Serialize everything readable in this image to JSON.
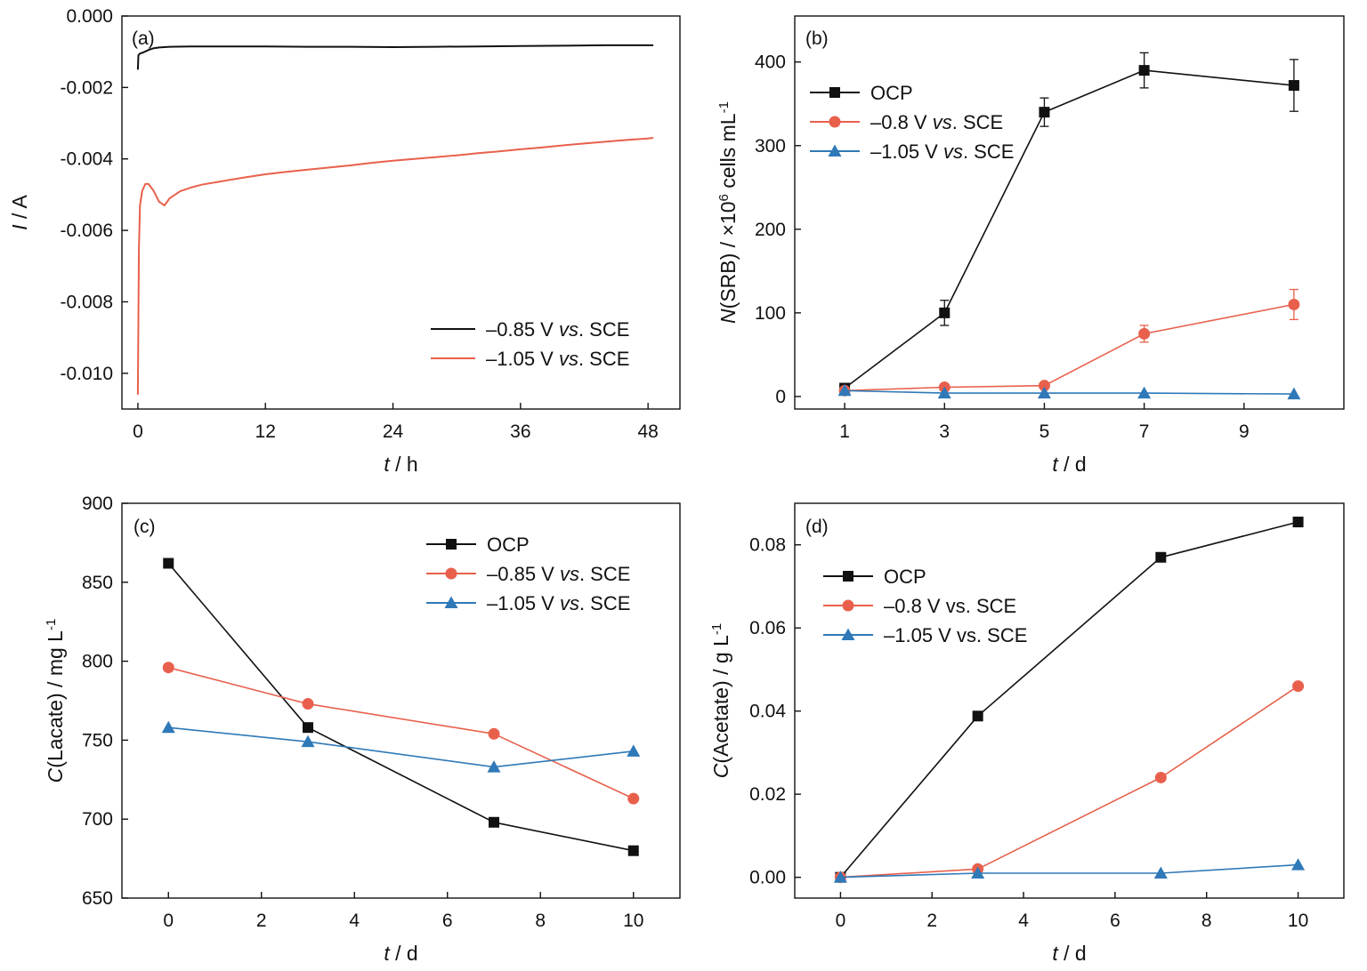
{
  "colors": {
    "black": "#111111",
    "red": "#e8604c",
    "blue": "#2f79b8"
  },
  "chart_data": [
    {
      "panel": "(a)",
      "type": "line",
      "xlabel": "t / h",
      "ylabel": "I / A",
      "xlim": [
        -1.5,
        51
      ],
      "ylim": [
        -0.011,
        0.0
      ],
      "xticks": [
        0,
        12,
        24,
        36,
        48
      ],
      "yticks": [
        -0.01,
        -0.008,
        -0.006,
        -0.004,
        -0.002,
        0.0
      ],
      "ytick_labels": [
        "-0.010",
        "-0.008",
        "-0.006",
        "-0.004",
        "-0.002",
        "0.000"
      ],
      "legend_position": "bottom-right",
      "series": [
        {
          "name": "–0.85 V vs. SCE",
          "color": "black",
          "marker": "none",
          "x": [
            0,
            0.05,
            0.2,
            0.5,
            1,
            1.5,
            2,
            3,
            5,
            8,
            12,
            16,
            20,
            24,
            28,
            32,
            36,
            40,
            44,
            48,
            48.5
          ],
          "y": [
            -0.0015,
            -0.0011,
            -0.00105,
            -0.00102,
            -0.00095,
            -0.0009,
            -0.00088,
            -0.00086,
            -0.00085,
            -0.00085,
            -0.00085,
            -0.00086,
            -0.00086,
            -0.00087,
            -0.00086,
            -0.00085,
            -0.00084,
            -0.00083,
            -0.00082,
            -0.00082,
            -0.00082
          ]
        },
        {
          "name": "–1.05 V vs. SCE",
          "color": "red",
          "marker": "none",
          "x": [
            0,
            0.05,
            0.1,
            0.2,
            0.4,
            0.7,
            1,
            1.5,
            2,
            2.5,
            3,
            4,
            5,
            6,
            8,
            10,
            12,
            14,
            16,
            18,
            20,
            22,
            24,
            26,
            28,
            30,
            32,
            34,
            36,
            38,
            40,
            42,
            44,
            46,
            48,
            48.5
          ],
          "y": [
            -0.0106,
            -0.0085,
            -0.0065,
            -0.0053,
            -0.0049,
            -0.0047,
            -0.0047,
            -0.0049,
            -0.0052,
            -0.0053,
            -0.0051,
            -0.0049,
            -0.0048,
            -0.00472,
            -0.00462,
            -0.00452,
            -0.00443,
            -0.00436,
            -0.0043,
            -0.00424,
            -0.00418,
            -0.00411,
            -0.00405,
            -0.004,
            -0.00395,
            -0.0039,
            -0.00384,
            -0.00379,
            -0.00373,
            -0.00368,
            -0.00362,
            -0.00357,
            -0.00352,
            -0.00347,
            -0.00343,
            -0.00341
          ]
        }
      ]
    },
    {
      "panel": "(b)",
      "type": "line",
      "xlabel": "t / d",
      "ylabel": "N(SRB) / ×10⁶ cells mL⁻¹",
      "xlim": [
        0,
        11
      ],
      "ylim": [
        -15,
        455
      ],
      "xticks": [
        1,
        3,
        5,
        7,
        9
      ],
      "yticks": [
        0,
        100,
        200,
        300,
        400
      ],
      "legend_position": "top-left",
      "x": [
        1,
        3,
        5,
        7,
        10
      ],
      "series": [
        {
          "name": "OCP",
          "color": "black",
          "marker": "square",
          "values": [
            10,
            100,
            340,
            390,
            372
          ],
          "errors": [
            0,
            15,
            17,
            21,
            31
          ]
        },
        {
          "name": "–0.8 V vs. SCE",
          "color": "red",
          "marker": "circle",
          "values": [
            7,
            11,
            13,
            75,
            110
          ],
          "errors": [
            0,
            0,
            0,
            10,
            18
          ]
        },
        {
          "name": "–1.05 V vs. SCE",
          "color": "blue",
          "marker": "triangle",
          "values": [
            7,
            4,
            4,
            4,
            3
          ],
          "errors": [
            0,
            0,
            0,
            0,
            0
          ]
        }
      ]
    },
    {
      "panel": "(c)",
      "type": "line",
      "xlabel": "t / d",
      "ylabel": "C(Lacate) / mg L⁻¹",
      "xlim": [
        -1,
        11
      ],
      "ylim": [
        650,
        900
      ],
      "xticks": [
        0,
        2,
        4,
        6,
        8,
        10
      ],
      "yticks": [
        650,
        700,
        750,
        800,
        850,
        900
      ],
      "legend_position": "top-right",
      "x": [
        0,
        3,
        7,
        10
      ],
      "series": [
        {
          "name": "OCP",
          "color": "black",
          "marker": "square",
          "values": [
            862,
            758,
            698,
            680
          ]
        },
        {
          "name": "–0.85 V vs. SCE",
          "color": "red",
          "marker": "circle",
          "values": [
            796,
            773,
            754,
            713
          ]
        },
        {
          "name": "–1.05 V vs. SCE",
          "color": "blue",
          "marker": "triangle",
          "values": [
            758,
            749,
            733,
            743
          ]
        }
      ]
    },
    {
      "panel": "(d)",
      "type": "line",
      "xlabel": "t / d",
      "ylabel": "C(Acetate) / g L⁻¹",
      "xlim": [
        -1,
        11
      ],
      "ylim": [
        -0.005,
        0.09
      ],
      "xticks": [
        0,
        2,
        4,
        6,
        8,
        10
      ],
      "yticks": [
        0.0,
        0.02,
        0.04,
        0.06,
        0.08
      ],
      "ytick_labels": [
        "0.00",
        "0.02",
        "0.04",
        "0.06",
        "0.08"
      ],
      "legend_position": "top-left",
      "x": [
        0,
        3,
        7,
        10
      ],
      "series": [
        {
          "name": "OCP",
          "color": "black",
          "marker": "square",
          "values": [
            0.0,
            0.0388,
            0.077,
            0.0855
          ]
        },
        {
          "name": "–0.8 V vs. SCE",
          "color": "red",
          "marker": "circle",
          "values": [
            0.0,
            0.002,
            0.024,
            0.046
          ]
        },
        {
          "name": "–1.05 V vs. SCE",
          "color": "blue",
          "marker": "triangle",
          "values": [
            0.0,
            0.001,
            0.001,
            0.003
          ]
        }
      ]
    }
  ]
}
